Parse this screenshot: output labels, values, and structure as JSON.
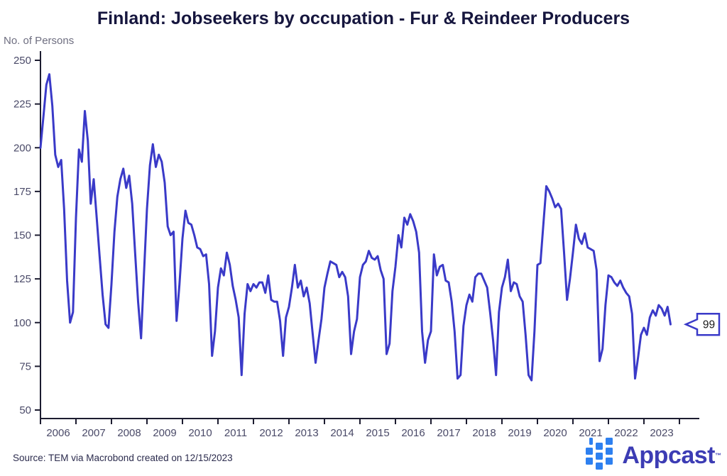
{
  "title": "Finland: Jobseekers by occupation - Fur & Reindeer Producers",
  "y_axis_unit": "No. of Persons",
  "source_note": "Source: TEM via Macrobond created on 12/15/2023",
  "logo": {
    "text": "Appcast",
    "trademark": "TM",
    "mark_color": "#2E80F0",
    "text_color": "#3C3CB4"
  },
  "chart_data": {
    "type": "line",
    "title": "Finland: Jobseekers by occupation - Fur & Reindeer Producers",
    "xlabel": "",
    "ylabel": "No. of Persons",
    "frequency": "monthly",
    "x_start": "2006-01",
    "x_end": "2023-10",
    "x_tick_labels": [
      "2006",
      "2007",
      "2008",
      "2009",
      "2010",
      "2011",
      "2012",
      "2013",
      "2014",
      "2015",
      "2016",
      "2017",
      "2018",
      "2019",
      "2020",
      "2021",
      "2022",
      "2023"
    ],
    "y_ticks": [
      50,
      75,
      100,
      125,
      150,
      175,
      200,
      225,
      250
    ],
    "ylim": [
      50,
      250
    ],
    "grid": false,
    "legend_position": "none",
    "line_color": "#3A3AC8",
    "axis_color": "#1C1C30",
    "tick_label_color": "#4A4A68",
    "end_label": {
      "value": 99
    },
    "series": [
      {
        "name": "Fur & Reindeer Producers jobseekers",
        "values": [
          200,
          218,
          236,
          242,
          224,
          196,
          189,
          193,
          165,
          124,
          100,
          106,
          160,
          199,
          192,
          221,
          204,
          168,
          182,
          160,
          138,
          116,
          99,
          97,
          122,
          152,
          172,
          182,
          188,
          177,
          184,
          168,
          140,
          112,
          91,
          128,
          165,
          190,
          202,
          189,
          196,
          192,
          180,
          155,
          150,
          152,
          101,
          122,
          148,
          164,
          157,
          156,
          150,
          143,
          142,
          138,
          139,
          122,
          81,
          95,
          120,
          131,
          127,
          140,
          133,
          121,
          113,
          103,
          70,
          105,
          122,
          118,
          122,
          120,
          123,
          123,
          117,
          127,
          113,
          112,
          112,
          101,
          81,
          103,
          109,
          120,
          133,
          120,
          124,
          115,
          120,
          111,
          94,
          77,
          90,
          102,
          120,
          128,
          135,
          134,
          133,
          126,
          129,
          126,
          115,
          82,
          95,
          102,
          126,
          133,
          135,
          141,
          137,
          136,
          138,
          130,
          125,
          82,
          88,
          118,
          132,
          150,
          143,
          160,
          156,
          162,
          158,
          152,
          140,
          95,
          77,
          90,
          95,
          139,
          127,
          132,
          133,
          124,
          123,
          112,
          95,
          68,
          70,
          98,
          110,
          116,
          112,
          126,
          128,
          128,
          124,
          120,
          106,
          90,
          70,
          106,
          120,
          126,
          136,
          118,
          123,
          122,
          115,
          112,
          93,
          70,
          67,
          95,
          133,
          134,
          156,
          178,
          175,
          171,
          166,
          168,
          165,
          140,
          113,
          125,
          140,
          156,
          148,
          145,
          151,
          143,
          142,
          141,
          130,
          78,
          85,
          110,
          127,
          126,
          123,
          121,
          124,
          120,
          117,
          115,
          105,
          68,
          80,
          93,
          97,
          93,
          103,
          107,
          104,
          110,
          108,
          104,
          109,
          99
        ]
      }
    ]
  }
}
